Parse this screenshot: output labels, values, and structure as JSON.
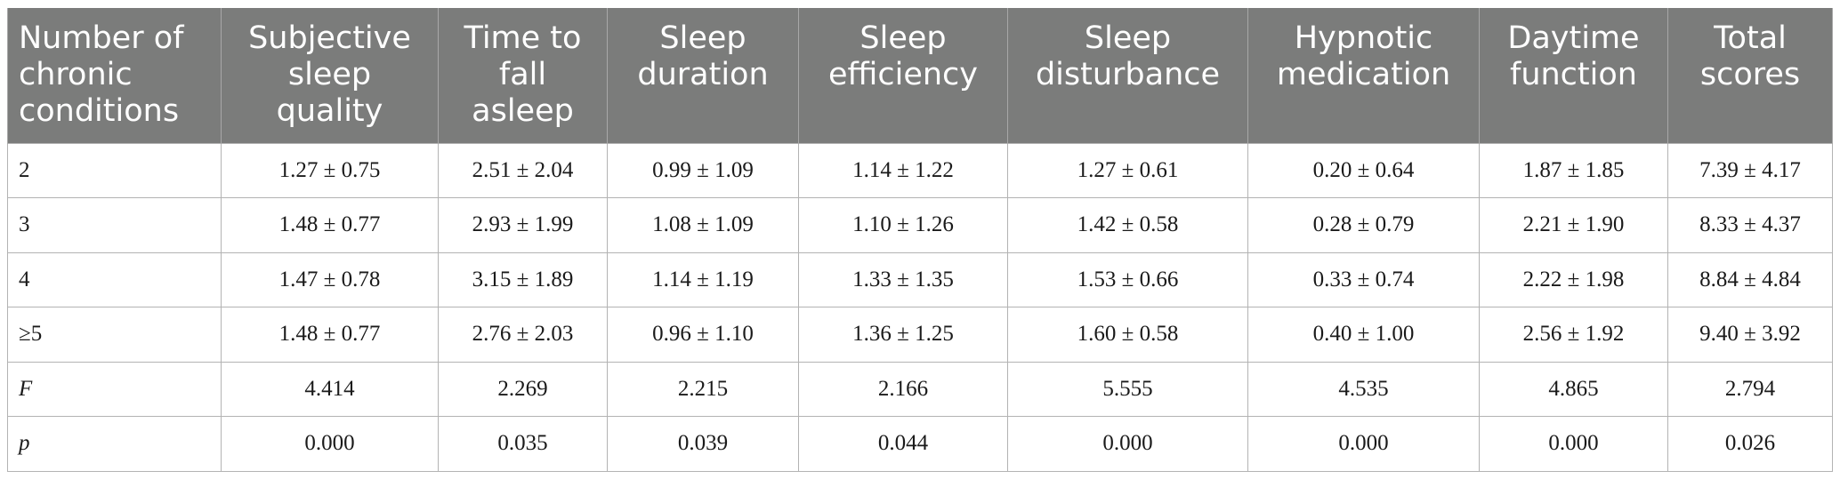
{
  "table": {
    "headers": [
      "Number of chronic conditions",
      "Subjective sleep quality",
      "Time to fall asleep",
      "Sleep duration",
      "Sleep efficiency",
      "Sleep disturbance",
      "Hypnotic medication",
      "Daytime function",
      "Total scores"
    ],
    "rows": [
      [
        "2",
        "1.27 ± 0.75",
        "2.51 ± 2.04",
        "0.99 ± 1.09",
        "1.14 ± 1.22",
        "1.27 ± 0.61",
        "0.20 ± 0.64",
        "1.87 ± 1.85",
        "7.39 ± 4.17"
      ],
      [
        "3",
        "1.48 ± 0.77",
        "2.93 ± 1.99",
        "1.08 ± 1.09",
        "1.10 ± 1.26",
        "1.42 ± 0.58",
        "0.28 ± 0.79",
        "2.21 ± 1.90",
        "8.33 ± 4.37"
      ],
      [
        "4",
        "1.47 ± 0.78",
        "3.15 ± 1.89",
        "1.14 ± 1.19",
        "1.33 ± 1.35",
        "1.53 ± 0.66",
        "0.33 ± 0.74",
        "2.22 ± 1.98",
        "8.84 ± 4.84"
      ],
      [
        "≥5",
        "1.48 ± 0.77",
        "2.76 ± 2.03",
        "0.96 ± 1.10",
        "1.36 ± 1.25",
        "1.60 ± 0.58",
        "0.40 ± 1.00",
        "2.56 ± 1.92",
        "9.40 ± 3.92"
      ],
      [
        "F",
        "4.414",
        "2.269",
        "2.215",
        "2.166",
        "5.555",
        "4.535",
        "4.865",
        "2.794"
      ],
      [
        "p",
        "0.000",
        "0.035",
        "0.039",
        "0.044",
        "0.000",
        "0.000",
        "0.000",
        "0.026"
      ]
    ]
  },
  "colors": {
    "header_background": "#7b7c7b",
    "header_text": "#ffffff",
    "border": "#b3b3b3"
  }
}
